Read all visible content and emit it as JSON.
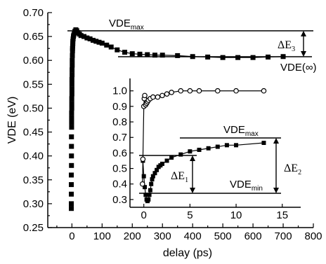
{
  "chart_data": [
    {
      "type": "scatter",
      "xlabel": "delay (ps)",
      "ylabel": "VDE (eV)",
      "xlim": [
        -80,
        800
      ],
      "ylim": [
        0.25,
        0.7
      ],
      "xticks": [
        0,
        100,
        200,
        300,
        400,
        500,
        600,
        700,
        800
      ],
      "yticks": [
        0.25,
        0.3,
        0.35,
        0.4,
        0.45,
        0.5,
        0.55,
        0.6,
        0.65,
        0.7
      ],
      "ytick_labels": [
        "0.25",
        "0.30",
        "0.35",
        "0.40",
        "0.45",
        "0.50",
        "0.55",
        "0.60",
        "0.65",
        "0.70"
      ],
      "series": [
        {
          "marker": "filled-square",
          "x": [
            -2,
            -2,
            -2,
            -2,
            -2,
            -1.5,
            -1.5,
            -1.5,
            -1.5,
            -1,
            -1,
            -1,
            -1,
            -0.5,
            -0.5,
            -0.5,
            0,
            0,
            0,
            0,
            0.5,
            0.5,
            1,
            1,
            1.5,
            2,
            2,
            2.5,
            3,
            3,
            4,
            5,
            6,
            8,
            10,
            13,
            16,
            20,
            25,
            30,
            40,
            50,
            60,
            70,
            80,
            90,
            100,
            115,
            130,
            150,
            175,
            200,
            225,
            250,
            275,
            300,
            350,
            400,
            450,
            500,
            550,
            600,
            650,
            700
          ],
          "y": [
            0.29,
            0.3,
            0.32,
            0.34,
            0.36,
            0.38,
            0.4,
            0.42,
            0.44,
            0.46,
            0.47,
            0.48,
            0.49,
            0.5,
            0.51,
            0.52,
            0.53,
            0.54,
            0.55,
            0.56,
            0.57,
            0.58,
            0.59,
            0.6,
            0.61,
            0.62,
            0.625,
            0.63,
            0.635,
            0.64,
            0.645,
            0.65,
            0.653,
            0.657,
            0.661,
            0.664,
            0.662,
            0.658,
            0.655,
            0.652,
            0.65,
            0.647,
            0.645,
            0.642,
            0.64,
            0.638,
            0.636,
            0.632,
            0.628,
            0.622,
            0.617,
            0.614,
            0.613,
            0.612,
            0.611,
            0.611,
            0.61,
            0.608,
            0.607,
            0.606,
            0.606,
            0.606,
            0.607,
            0.608
          ]
        }
      ],
      "annotations": [
        {
          "text": "VDE",
          "sub": "max",
          "y": 0.665
        },
        {
          "text": "ΔE",
          "sub": "3"
        },
        {
          "text": "VDE(∞)",
          "y": 0.607
        }
      ]
    },
    {
      "type": "scatter",
      "inset": true,
      "xlim": [
        -1.5,
        17
      ],
      "ylim": [
        0.25,
        1.08
      ],
      "xticks": [
        0,
        5,
        10,
        15
      ],
      "yticks": [
        0.3,
        0.4,
        0.5,
        0.6,
        0.7,
        0.8,
        0.9,
        1.0
      ],
      "ytick_labels": [
        "0.3",
        "0.4",
        "0.5",
        "0.6",
        "0.7",
        "0.8",
        "0.9",
        "1.0"
      ],
      "series": [
        {
          "marker": "open-circle",
          "x": [
            -0.15,
            -0.1,
            0,
            0.05,
            0.1,
            0.2,
            0.3,
            0.4,
            0.5,
            0.7,
            1.0,
            1.5,
            2,
            2.5,
            3,
            4,
            5,
            6,
            8,
            10,
            13
          ],
          "y": [
            0.4,
            0.56,
            0.9,
            0.95,
            0.97,
            0.91,
            0.92,
            0.93,
            0.94,
            0.95,
            0.96,
            0.96,
            0.97,
            0.98,
            0.99,
            1.0,
            1.0,
            1.0,
            1.0,
            1.0,
            1.0
          ]
        },
        {
          "marker": "filled-square",
          "x": [
            -0.1,
            0,
            0.1,
            0.2,
            0.3,
            0.4,
            0.5,
            0.6,
            0.7,
            0.8,
            0.9,
            1.0,
            1.2,
            1.4,
            1.6,
            1.8,
            2.0,
            2.5,
            3,
            4,
            5,
            6,
            7,
            8,
            9,
            10,
            13
          ],
          "y": [
            0.55,
            0.45,
            0.38,
            0.33,
            0.3,
            0.29,
            0.3,
            0.33,
            0.36,
            0.4,
            0.43,
            0.45,
            0.47,
            0.49,
            0.51,
            0.52,
            0.53,
            0.55,
            0.57,
            0.59,
            0.61,
            0.62,
            0.63,
            0.64,
            0.65,
            0.65,
            0.665
          ]
        }
      ],
      "annotations": [
        {
          "text": "VDE",
          "sub": "max",
          "y": 0.665
        },
        {
          "text": "ΔE",
          "sub": "1"
        },
        {
          "text": "ΔE",
          "sub": "2"
        },
        {
          "text": "VDE",
          "sub": "min",
          "y": 0.285
        }
      ]
    }
  ]
}
